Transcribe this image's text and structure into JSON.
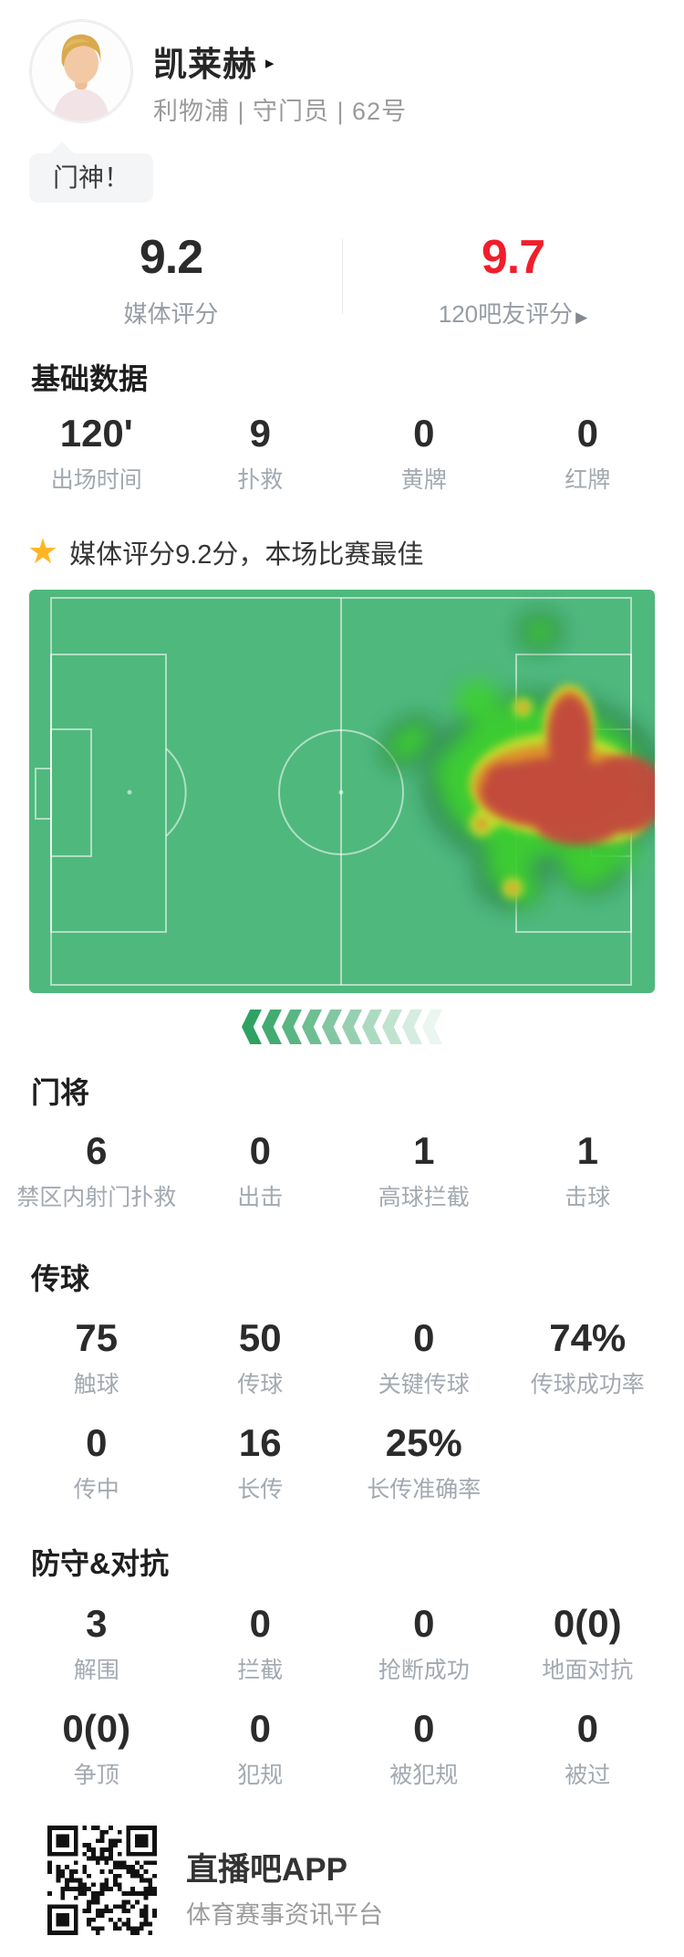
{
  "player": {
    "name": "凯莱赫",
    "info": "利物浦 | 守门员 | 62号",
    "tag": "门神！"
  },
  "ratings": {
    "media": {
      "value": "9.2",
      "label": "媒体评分"
    },
    "fan": {
      "value": "9.7",
      "label": "120吧友评分"
    }
  },
  "icons": {
    "name_arrow": "▸",
    "fan_arrow": "▶",
    "star": "★"
  },
  "highlight": "媒体评分9.2分，本场比赛最佳",
  "basic": {
    "title": "基础数据",
    "items": [
      {
        "v": "120'",
        "l": "出场时间"
      },
      {
        "v": "9",
        "l": "扑救"
      },
      {
        "v": "0",
        "l": "黄牌"
      },
      {
        "v": "0",
        "l": "红牌"
      }
    ]
  },
  "goalkeeping": {
    "title": "门将",
    "items": [
      {
        "v": "6",
        "l": "禁区内射门扑救"
      },
      {
        "v": "0",
        "l": "出击"
      },
      {
        "v": "1",
        "l": "高球拦截"
      },
      {
        "v": "1",
        "l": "击球"
      }
    ]
  },
  "passing": {
    "title": "传球",
    "row1": [
      {
        "v": "75",
        "l": "触球"
      },
      {
        "v": "50",
        "l": "传球"
      },
      {
        "v": "0",
        "l": "关键传球"
      },
      {
        "v": "74%",
        "l": "传球成功率"
      }
    ],
    "row2": [
      {
        "v": "0",
        "l": "传中"
      },
      {
        "v": "16",
        "l": "长传"
      },
      {
        "v": "25%",
        "l": "长传准确率"
      }
    ]
  },
  "defense": {
    "title": "防守&对抗",
    "row1": [
      {
        "v": "3",
        "l": "解围"
      },
      {
        "v": "0",
        "l": "拦截"
      },
      {
        "v": "0",
        "l": "抢断成功"
      },
      {
        "v": "0(0)",
        "l": "地面对抗"
      }
    ],
    "row2": [
      {
        "v": "0(0)",
        "l": "争顶"
      },
      {
        "v": "0",
        "l": "犯规"
      },
      {
        "v": "0",
        "l": "被犯规"
      },
      {
        "v": "0",
        "l": "被过"
      }
    ]
  },
  "footer": {
    "app_name": "直播吧APP",
    "tagline": "体育赛事资讯平台"
  },
  "colors": {
    "field_green": "#4fb87d",
    "fan_red": "#f01e2c",
    "star_gold": "#ffb525",
    "heat_red": "#c14a3e"
  }
}
